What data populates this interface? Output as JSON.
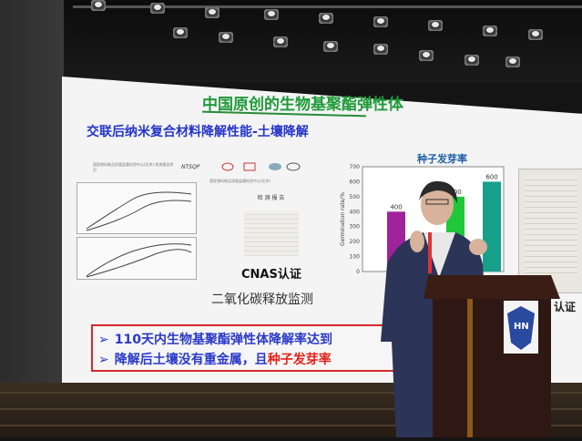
{
  "slide": {
    "title": "中国原创的生物基聚酯弹性体",
    "subtitle": "交联后纳米复合材料降解性能-土壤降解",
    "left_doc_header": "国家塑料制品质量监督检验中心(北京) 检测报告附页",
    "report_org": "国家塑料制品质量监督检验中心(北京)",
    "report_title": "检 测 报 告",
    "ntsqp": "NTSQP",
    "cnas_label": "CNAS认证",
    "co2_label": "二氧化碳释放监测",
    "bullets": [
      {
        "text": "110天内生物基聚酯弹性体降解率达到",
        "highlight": ""
      },
      {
        "text": "降解后土壤没有重金属，且",
        "highlight": "种子发芽率"
      }
    ],
    "right_cert_label": "认证",
    "colors": {
      "title": "#1f9a3a",
      "subtitle": "#2535c8",
      "box_border": "#d52a2a",
      "highlight": "#e2231a"
    }
  },
  "chart_data": {
    "type": "bar",
    "title": "种子发芽率",
    "ylabel": "Germination rate/%",
    "ylim": [
      0,
      700
    ],
    "yticks": [
      "0",
      "100",
      "200",
      "300",
      "400",
      "500",
      "600",
      "700"
    ],
    "values": [
      400,
      500,
      600
    ],
    "data_labels": [
      "400",
      "500",
      "600"
    ],
    "colors": [
      "#a0229a",
      "#1ec83a",
      "#16a08a"
    ]
  },
  "podium": {
    "logo": "HN"
  }
}
